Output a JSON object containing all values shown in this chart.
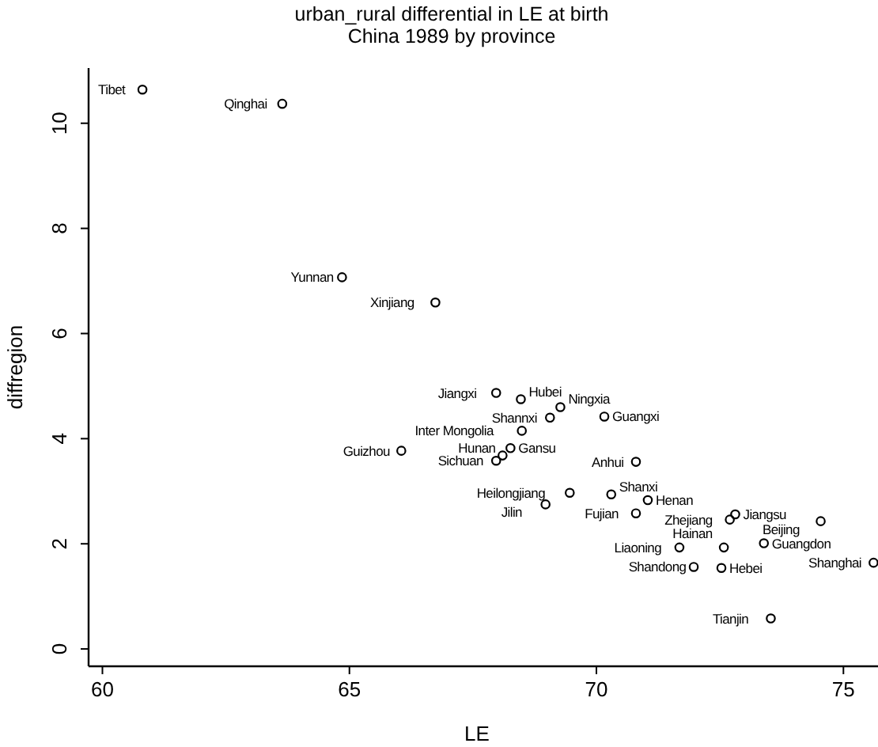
{
  "chart_data": {
    "type": "scatter",
    "title": "urban_rural differential in LE at birth",
    "subtitle": "China 1989 by province",
    "xlabel": "LE",
    "ylabel": "diffregion",
    "xlim": [
      59.72,
      75.7
    ],
    "ylim": [
      -0.33,
      11.05
    ],
    "xticks": [
      60,
      65,
      70,
      75
    ],
    "yticks": [
      0,
      2,
      4,
      6,
      8,
      10
    ],
    "grid": false,
    "marker": "circle",
    "series": [
      {
        "color": "#000000",
        "x": [
          60.81,
          63.64,
          64.85,
          66.74,
          67.97,
          68.47,
          69.27,
          69.06,
          70.16,
          68.49,
          68.26,
          68.1,
          67.97,
          66.05,
          70.8,
          69.46,
          70.3,
          68.97,
          71.04,
          70.8,
          72.81,
          72.7,
          74.54,
          73.39,
          72.58,
          71.68,
          72.53,
          71.97,
          75.61,
          73.53
        ],
        "values": [
          10.64,
          10.37,
          7.07,
          6.59,
          4.87,
          4.75,
          4.6,
          4.4,
          4.42,
          4.15,
          3.82,
          3.68,
          3.58,
          3.77,
          3.56,
          2.97,
          2.94,
          2.75,
          2.83,
          2.58,
          2.56,
          2.46,
          2.43,
          2.01,
          1.93,
          1.93,
          1.54,
          1.56,
          1.64,
          0.58
        ]
      }
    ],
    "annotations": [
      {
        "text": "Tibet",
        "x": 60.81,
        "y": 10.64
      },
      {
        "text": "Qinghai",
        "x": 63.64,
        "y": 10.37
      },
      {
        "text": "Yunnan",
        "x": 64.85,
        "y": 7.07
      },
      {
        "text": "Xinjiang",
        "x": 66.74,
        "y": 6.59
      },
      {
        "text": "Jiangxi",
        "x": 67.97,
        "y": 4.87
      },
      {
        "text": "Hubei",
        "x": 68.47,
        "y": 4.75
      },
      {
        "text": "Ningxia",
        "x": 69.27,
        "y": 4.6
      },
      {
        "text": "Shannxi",
        "x": 69.06,
        "y": 4.4
      },
      {
        "text": "Guangxi",
        "x": 70.16,
        "y": 4.42
      },
      {
        "text": "Inter Mongolia",
        "x": 68.49,
        "y": 4.15
      },
      {
        "text": "Gansu",
        "x": 68.26,
        "y": 3.82
      },
      {
        "text": "Hunan",
        "x": 68.1,
        "y": 3.68
      },
      {
        "text": "Sichuan",
        "x": 67.97,
        "y": 3.58
      },
      {
        "text": "Guizhou",
        "x": 66.05,
        "y": 3.77
      },
      {
        "text": "Anhui",
        "x": 70.8,
        "y": 3.56
      },
      {
        "text": "Heilongjiang",
        "x": 69.46,
        "y": 2.97
      },
      {
        "text": "Shanxi",
        "x": 70.3,
        "y": 2.94
      },
      {
        "text": "Jilin",
        "x": 68.97,
        "y": 2.75
      },
      {
        "text": "Henan",
        "x": 71.04,
        "y": 2.83
      },
      {
        "text": "Fujian",
        "x": 70.8,
        "y": 2.58
      },
      {
        "text": "Jiangsu",
        "x": 72.81,
        "y": 2.56
      },
      {
        "text": "Zhejiang",
        "x": 72.7,
        "y": 2.46
      },
      {
        "text": "Beijing",
        "x": 74.54,
        "y": 2.43
      },
      {
        "text": "Guangdon",
        "x": 73.39,
        "y": 2.01
      },
      {
        "text": "Hainan",
        "x": 72.58,
        "y": 1.93
      },
      {
        "text": "Liaoning",
        "x": 71.68,
        "y": 1.93
      },
      {
        "text": "Hebei",
        "x": 72.53,
        "y": 1.54
      },
      {
        "text": "Shandong",
        "x": 71.97,
        "y": 1.56
      },
      {
        "text": "Shanghai",
        "x": 75.61,
        "y": 1.64
      },
      {
        "text": "Tianjin",
        "x": 73.53,
        "y": 0.58
      }
    ]
  }
}
